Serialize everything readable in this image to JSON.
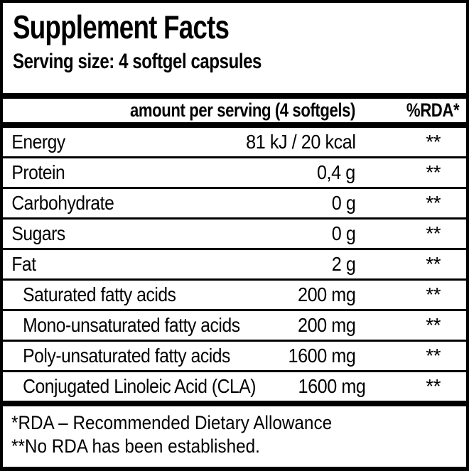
{
  "label": {
    "title": "Supplement Facts",
    "serving_size": "Serving size: 4 softgel capsules",
    "table": {
      "header": {
        "amount": "amount per serving (4 softgels)",
        "rda": "%RDA*"
      },
      "rows": [
        {
          "name": "Energy",
          "amount": "81 kJ / 20 kcal",
          "rda": "**",
          "indent": false
        },
        {
          "name": "Protein",
          "amount": "0,4 g",
          "rda": "**",
          "indent": false
        },
        {
          "name": "Carbohydrate",
          "amount": "0 g",
          "rda": "**",
          "indent": false
        },
        {
          "name": "Sugars",
          "amount": "0 g",
          "rda": "**",
          "indent": false
        },
        {
          "name": "Fat",
          "amount": "2 g",
          "rda": "**",
          "indent": false
        },
        {
          "name": "Saturated fatty acids",
          "amount": "200 mg",
          "rda": "**",
          "indent": true
        },
        {
          "name": "Mono-unsaturated fatty acids",
          "amount": "200 mg",
          "rda": "**",
          "indent": true
        },
        {
          "name": "Poly-unsaturated fatty acids",
          "amount": "1600 mg",
          "rda": "**",
          "indent": true
        },
        {
          "name": "Conjugated Linoleic Acid (CLA)",
          "amount": "1600 mg",
          "rda": "**",
          "indent": true
        }
      ]
    },
    "footnotes": [
      "*RDA – Recommended Dietary Allowance",
      "**No RDA has been established."
    ],
    "colors": {
      "foreground": "#000000",
      "background": "#ffffff"
    }
  }
}
